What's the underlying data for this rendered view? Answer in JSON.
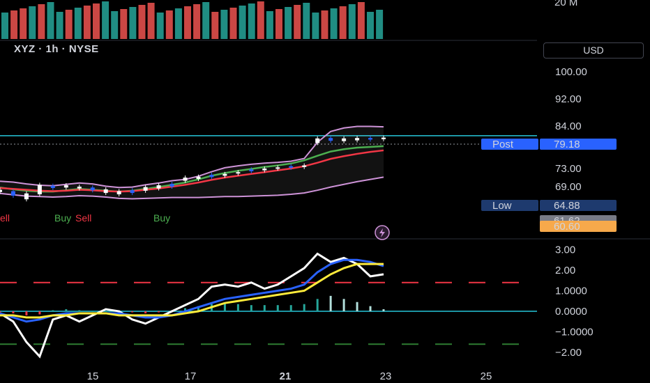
{
  "header": {
    "ticker": "XYZ · 1h · NYSE",
    "currency_button": "USD"
  },
  "volume_axis_label": "20 M",
  "chart_data": [
    {
      "type": "line",
      "panel": "price",
      "y_ticks": [
        "100.00",
        "92.00",
        "84.00",
        "73.00",
        "69.00"
      ],
      "y_tick_values": [
        100,
        92,
        84,
        73,
        69
      ],
      "x_ticks": [
        "15",
        "17",
        "21",
        "23",
        "25"
      ],
      "horizontal_line": 81.5,
      "price_labels": [
        {
          "name": "Post",
          "value": "79.18",
          "color": "#2962ff"
        },
        {
          "name": "Low",
          "value": "64.88",
          "color": "#1e3a6e"
        },
        {
          "name": "",
          "value": "61.62",
          "color": "#787b86"
        },
        {
          "name": "",
          "value": "60.60",
          "color": "#f7a94b"
        }
      ],
      "signals": [
        {
          "text": "ell",
          "color": "#f23645"
        },
        {
          "text": "Buy",
          "color": "#4caf50"
        },
        {
          "text": "Sell",
          "color": "#f23645"
        },
        {
          "text": "Buy",
          "color": "#4caf50"
        }
      ],
      "series": [
        {
          "values": [
            70.2,
            70.0,
            69.6,
            69.3,
            69.2,
            69.5,
            69.8,
            69.6,
            69.1,
            68.8,
            68.9,
            69.4,
            69.8,
            70.3,
            70.6,
            71.3,
            72.3,
            73.2,
            73.7,
            74.1,
            74.4,
            74.6,
            74.9,
            75.6,
            79.8,
            82.6,
            83.5,
            83.9,
            83.9,
            83.8
          ],
          "color": "#ce93d8"
        },
        {
          "values": [
            68.8,
            68.4,
            68.1,
            67.9,
            67.9,
            68.2,
            68.5,
            68.3,
            68.1,
            67.9,
            68.1,
            68.5,
            68.9,
            69.4,
            69.9,
            70.6,
            71.4,
            72.0,
            72.5,
            72.9,
            73.4,
            73.8,
            74.3,
            75.1,
            76.3,
            77.4,
            78.0,
            78.4,
            78.6,
            78.8
          ],
          "color": "#4caf50"
        },
        {
          "values": [
            68.7,
            68.5,
            68.3,
            68.1,
            68.0,
            68.1,
            68.3,
            68.2,
            68.0,
            67.9,
            68.0,
            68.3,
            68.6,
            69.0,
            69.4,
            69.9,
            70.5,
            71.0,
            71.4,
            71.8,
            72.2,
            72.6,
            73.0,
            73.6,
            74.5,
            75.5,
            76.2,
            76.8,
            77.3,
            77.7
          ],
          "color": "#f23645"
        },
        {
          "values": [
            67.5,
            67.2,
            66.9,
            66.8,
            66.7,
            66.8,
            67.0,
            66.9,
            66.7,
            66.4,
            66.3,
            66.4,
            66.5,
            66.6,
            66.6,
            66.6,
            66.7,
            66.8,
            66.8,
            66.9,
            67.0,
            67.1,
            67.3,
            67.6,
            68.2,
            68.9,
            69.5,
            70.1,
            70.6,
            71.1
          ],
          "color": "#ce93d8"
        }
      ],
      "candles": [
        [
          67.8,
          68.3
        ],
        [
          67.0,
          68.0
        ],
        [
          66.2,
          67.5
        ],
        [
          67.3,
          69.4
        ],
        [
          68.7,
          69.2
        ],
        [
          68.8,
          69.3
        ],
        [
          68.6,
          69.0
        ],
        [
          68.2,
          68.8
        ],
        [
          67.6,
          68.4
        ],
        [
          67.3,
          68.0
        ],
        [
          67.6,
          68.2
        ],
        [
          68.1,
          68.9
        ],
        [
          68.6,
          69.3
        ],
        [
          69.0,
          69.6
        ],
        [
          70.3,
          71.0
        ],
        [
          70.7,
          71.2
        ],
        [
          71.1,
          71.6
        ],
        [
          71.4,
          71.8
        ],
        [
          71.9,
          72.2
        ],
        [
          72.4,
          72.8
        ],
        [
          72.6,
          73.0
        ],
        [
          73.0,
          73.3
        ],
        [
          73.2,
          73.6
        ],
        [
          73.4,
          73.8
        ],
        [
          79.6,
          80.8
        ],
        [
          80.2,
          80.9
        ],
        [
          80.1,
          80.8
        ],
        [
          80.3,
          80.9
        ],
        [
          80.5,
          80.9
        ],
        [
          80.6,
          81.0
        ]
      ]
    },
    {
      "type": "line",
      "panel": "oscillator",
      "y_ticks": [
        "3.00",
        "2.00",
        "1.0000",
        "0.0000",
        "−1.0000",
        "−2.00"
      ],
      "y_tick_values": [
        3,
        2,
        1,
        0,
        -1,
        -2
      ],
      "reference_lines": [
        1.4,
        -1.6
      ],
      "series": [
        {
          "values": [
            -0.1,
            -0.5,
            -1.5,
            -2.2,
            -0.4,
            -0.2,
            -0.5,
            -0.2,
            0.1,
            0.0,
            -0.4,
            -0.6,
            -0.3,
            0.0,
            0.3,
            0.6,
            1.2,
            1.3,
            1.2,
            1.4,
            1.1,
            1.3,
            1.7,
            2.1,
            2.8,
            2.4,
            2.6,
            2.3,
            1.7,
            1.8
          ],
          "color": "#ffffff"
        },
        {
          "values": [
            -0.1,
            -0.3,
            -0.5,
            -0.4,
            -0.2,
            -0.1,
            -0.1,
            -0.1,
            -0.1,
            -0.1,
            -0.2,
            -0.3,
            -0.3,
            -0.2,
            0.0,
            0.2,
            0.4,
            0.6,
            0.7,
            0.8,
            0.9,
            1.0,
            1.1,
            1.3,
            1.9,
            2.3,
            2.5,
            2.5,
            2.4,
            2.2
          ],
          "color": "#2962ff"
        },
        {
          "values": [
            -0.2,
            -0.2,
            -0.3,
            -0.3,
            -0.2,
            -0.2,
            -0.1,
            -0.1,
            -0.1,
            -0.2,
            -0.2,
            -0.2,
            -0.2,
            -0.2,
            -0.1,
            0.0,
            0.2,
            0.4,
            0.5,
            0.6,
            0.7,
            0.8,
            0.9,
            1.0,
            1.4,
            1.8,
            2.1,
            2.3,
            2.3,
            2.3
          ],
          "color": "#ffeb3b"
        }
      ],
      "histogram": [
        -0.05,
        -0.1,
        -0.2,
        -0.15,
        0.05,
        0.1,
        0.05,
        0.0,
        0.0,
        0.05,
        -0.05,
        -0.1,
        -0.05,
        0.05,
        0.15,
        0.25,
        0.35,
        0.4,
        0.35,
        0.3,
        0.3,
        0.3,
        0.3,
        0.35,
        0.6,
        0.75,
        0.6,
        0.45,
        0.25,
        0.1
      ]
    }
  ]
}
